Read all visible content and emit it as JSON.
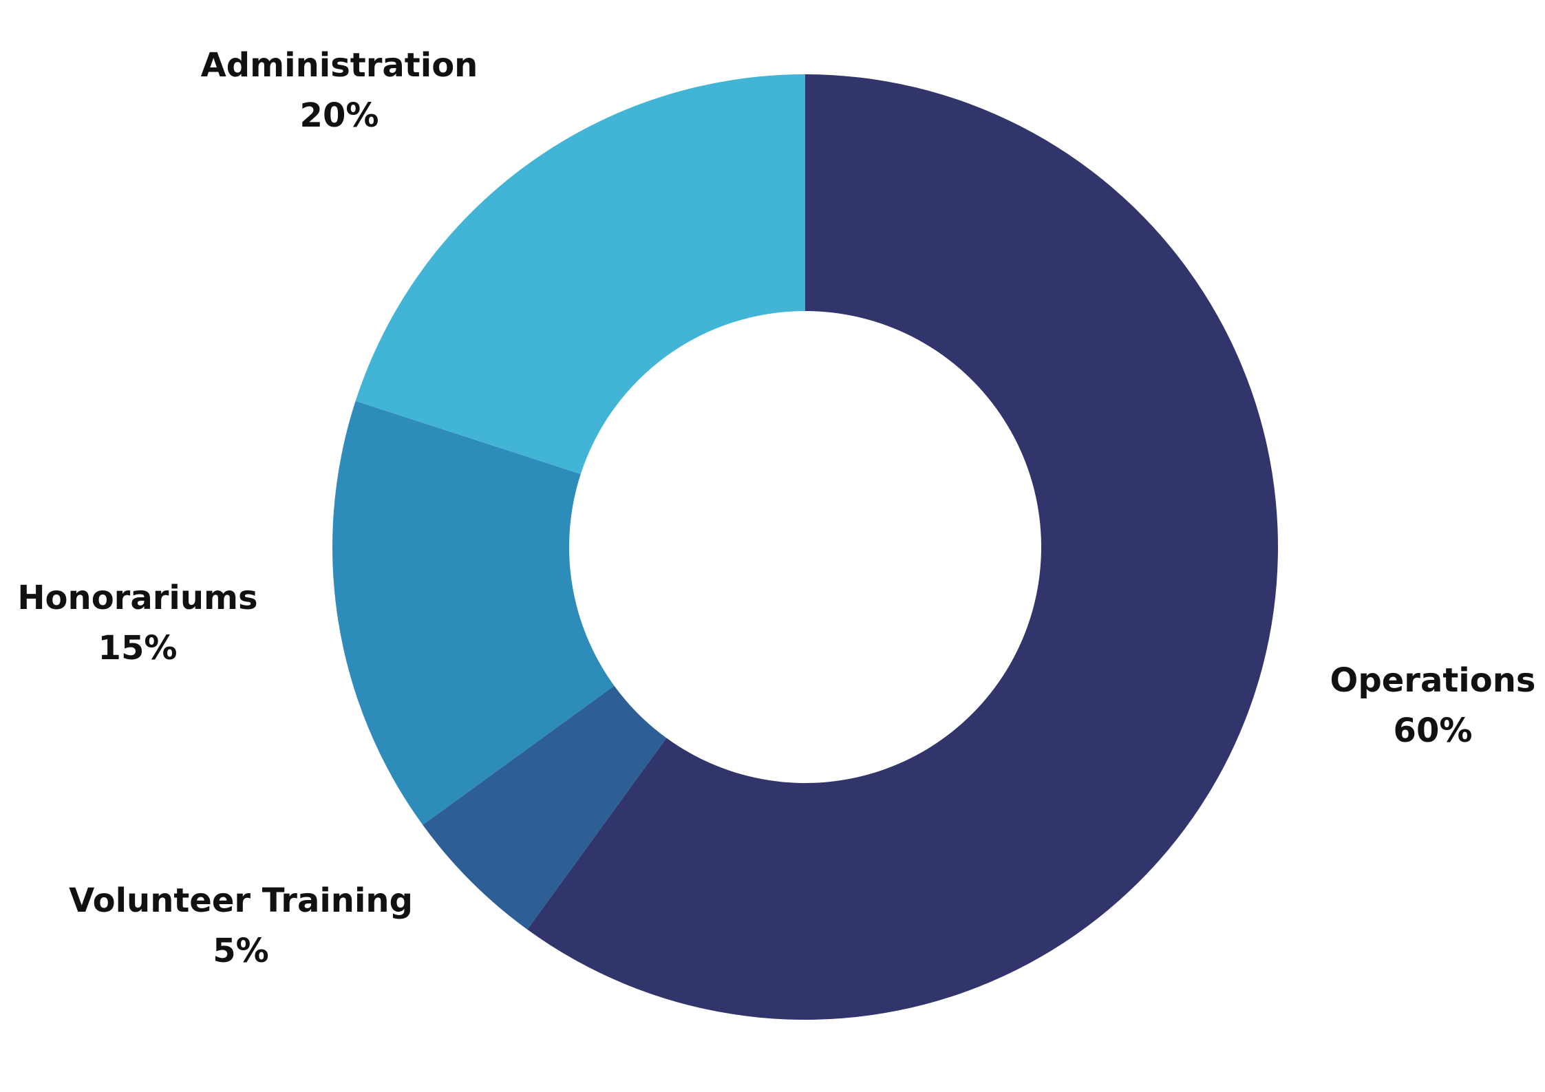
{
  "chart_data": {
    "type": "pie",
    "variant": "donut",
    "title": "",
    "legend": "none",
    "start_angle_deg": 0,
    "direction": "clockwise",
    "slices": [
      {
        "label": "Operations",
        "value": 60,
        "value_label": "60%",
        "color": "#31356b"
      },
      {
        "label": "Volunteer Training",
        "value": 5,
        "value_label": "5%",
        "color": "#2d5f96"
      },
      {
        "label": "Honorariums",
        "value": 15,
        "value_label": "15%",
        "color": "#2e8cba"
      },
      {
        "label": "Administration",
        "value": 20,
        "value_label": "20%",
        "color": "#42b5d6"
      }
    ]
  }
}
